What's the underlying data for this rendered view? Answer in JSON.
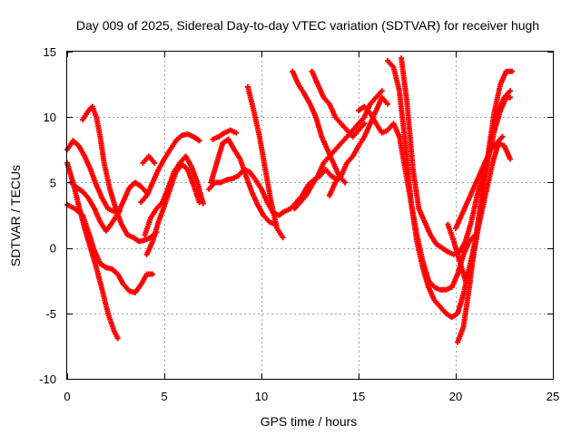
{
  "chart_data": {
    "type": "scatter",
    "title": "Day 009 of 2025, Sidereal Day-to-day VTEC variation (SDTVAR) for receiver hugh",
    "xlabel": "GPS time / hours",
    "ylabel": "SDTVAR / TECUs",
    "xlim": [
      0,
      25
    ],
    "ylim": [
      -10,
      15
    ],
    "x_ticks": [
      0,
      5,
      10,
      15,
      20,
      25
    ],
    "y_ticks": [
      -10,
      -5,
      0,
      5,
      10,
      15
    ],
    "grid": true,
    "marker": "+",
    "color": "#ff0000",
    "series": [
      {
        "x": [
          0.0,
          0.3,
          0.6,
          0.9,
          1.2,
          1.5,
          1.8,
          2.1,
          2.4,
          2.6
        ],
        "y": [
          6.5,
          5.0,
          3.2,
          1.5,
          0.0,
          -1.5,
          -3.2,
          -5.0,
          -6.3,
          -6.9
        ]
      },
      {
        "x": [
          0.0,
          0.4,
          0.8,
          1.1,
          1.4,
          1.7,
          2.0,
          2.3,
          2.6,
          2.9,
          3.2,
          3.5,
          3.8,
          4.1,
          4.4
        ],
        "y": [
          3.3,
          3.0,
          2.5,
          1.2,
          -0.2,
          -1.2,
          -1.5,
          -1.6,
          -2.0,
          -2.8,
          -3.3,
          -3.4,
          -2.8,
          -2.0,
          -2.0
        ]
      },
      {
        "x": [
          0.0,
          0.3,
          0.6,
          0.9,
          1.2,
          1.5,
          1.8,
          2.1,
          2.4,
          2.7
        ],
        "y": [
          7.5,
          8.2,
          7.8,
          7.0,
          6.0,
          4.8,
          3.8,
          3.0,
          2.8,
          2.8
        ]
      },
      {
        "x": [
          0.8,
          1.1,
          1.3,
          1.5,
          1.7,
          1.9,
          2.2,
          2.5,
          2.8,
          3.1,
          3.4,
          3.7,
          4.0,
          4.3,
          4.6
        ],
        "y": [
          9.8,
          10.5,
          10.8,
          10.0,
          8.5,
          6.5,
          4.5,
          3.0,
          1.8,
          1.0,
          0.8,
          0.5,
          0.6,
          0.8,
          1.2
        ]
      },
      {
        "x": [
          0.2,
          0.5,
          0.8,
          1.1,
          1.4,
          1.7,
          2.0,
          2.3,
          2.6,
          2.9,
          3.2,
          3.5,
          3.8,
          4.1
        ],
        "y": [
          5.0,
          4.6,
          4.3,
          3.8,
          3.0,
          2.0,
          1.3,
          1.9,
          2.6,
          3.6,
          4.6,
          5.0,
          4.7,
          4.2
        ]
      },
      {
        "x": [
          4.0,
          4.3,
          4.6,
          4.9,
          5.2,
          5.5,
          5.8,
          6.1,
          6.4,
          6.7,
          7.0
        ],
        "y": [
          1.0,
          2.3,
          3.0,
          3.5,
          4.6,
          5.8,
          6.5,
          7.0,
          6.2,
          5.0,
          3.4
        ]
      },
      {
        "x": [
          3.8,
          4.1,
          4.4,
          4.7,
          5.0,
          5.3,
          5.6,
          5.9,
          6.2,
          6.5,
          6.8
        ],
        "y": [
          3.5,
          4.0,
          5.0,
          6.0,
          6.8,
          7.5,
          8.2,
          8.6,
          8.7,
          8.5,
          8.2
        ]
      },
      {
        "x": [
          4.1,
          4.4,
          4.7,
          5.0,
          5.3,
          5.6,
          5.9,
          6.2,
          6.5,
          6.8
        ],
        "y": [
          -0.5,
          0.5,
          2.0,
          3.2,
          4.5,
          5.8,
          6.4,
          6.0,
          4.8,
          3.5
        ]
      },
      {
        "x": [
          3.9,
          4.2,
          4.5
        ],
        "y": [
          6.5,
          7.0,
          6.5
        ]
      },
      {
        "x": [
          7.3,
          7.6,
          7.9,
          8.2,
          8.5,
          8.8,
          9.1,
          9.4,
          9.7,
          10.0,
          10.3,
          10.6,
          10.9,
          11.2,
          11.5,
          11.8,
          12.1,
          12.4,
          12.7,
          13.0,
          13.3,
          13.6,
          13.9
        ],
        "y": [
          4.5,
          5.0,
          5.0,
          5.2,
          5.3,
          5.5,
          6.0,
          5.8,
          5.2,
          4.5,
          3.5,
          2.7,
          2.5,
          2.8,
          3.0,
          3.5,
          4.0,
          4.8,
          5.2,
          5.5,
          6.0,
          5.5,
          5.2
        ]
      },
      {
        "x": [
          7.5,
          7.8,
          8.1,
          8.4,
          8.7
        ],
        "y": [
          8.3,
          8.5,
          8.8,
          9.0,
          8.8
        ]
      },
      {
        "x": [
          7.4,
          7.7,
          8.0,
          8.3,
          8.6,
          8.9,
          9.2,
          9.5,
          9.8,
          10.1,
          10.4,
          10.7
        ],
        "y": [
          5.0,
          6.5,
          8.0,
          8.3,
          7.5,
          6.8,
          5.5,
          4.3,
          3.3,
          2.5,
          2.0,
          1.8
        ]
      },
      {
        "x": [
          9.3,
          9.6,
          9.9,
          10.2,
          10.5,
          10.8,
          11.1
        ],
        "y": [
          12.3,
          10.5,
          8.5,
          6.0,
          3.5,
          1.5,
          0.8
        ]
      },
      {
        "x": [
          11.6,
          11.9,
          12.2,
          12.5,
          12.8,
          13.1,
          13.4,
          13.7,
          14.0,
          14.3
        ],
        "y": [
          13.5,
          12.5,
          11.8,
          11.0,
          10.0,
          8.5,
          7.5,
          6.5,
          5.5,
          5.0
        ]
      },
      {
        "x": [
          12.6,
          12.9,
          13.2,
          13.5,
          13.8,
          14.1,
          14.4,
          14.7,
          15.0,
          15.3
        ],
        "y": [
          13.5,
          12.5,
          11.5,
          11.0,
          10.0,
          9.5,
          9.0,
          8.5,
          9.0,
          9.5
        ]
      },
      {
        "x": [
          11.7,
          12.0,
          12.3,
          12.6,
          12.9,
          13.2,
          13.5,
          13.8,
          14.1,
          14.4,
          14.7,
          15.0,
          15.3,
          15.6,
          15.9,
          16.2
        ],
        "y": [
          3.0,
          3.5,
          4.0,
          4.8,
          5.5,
          6.5,
          7.0,
          7.5,
          8.0,
          8.5,
          9.0,
          9.5,
          10.0,
          11.0,
          11.5,
          12.0
        ]
      },
      {
        "x": [
          13.5,
          13.8,
          14.1,
          14.4,
          14.7,
          15.0,
          15.3,
          15.6,
          15.9,
          16.2,
          16.5
        ],
        "y": [
          4.0,
          5.0,
          5.5,
          6.5,
          7.0,
          7.8,
          8.5,
          9.5,
          10.5,
          11.5,
          11.0
        ]
      },
      {
        "x": [
          15.0,
          15.3,
          15.6,
          15.9,
          16.2,
          16.5,
          16.8,
          17.1,
          17.4,
          17.7,
          18.0,
          18.3,
          18.6,
          18.9,
          19.2,
          19.5,
          19.8,
          20.1,
          20.4,
          20.7,
          21.0
        ],
        "y": [
          10.5,
          10.8,
          10.3,
          9.5,
          8.8,
          9.0,
          9.5,
          8.5,
          6.0,
          3.5,
          1.0,
          -1.0,
          -2.5,
          -3.0,
          -3.2,
          -3.2,
          -3.0,
          -2.0,
          -0.5,
          0.5,
          1.0
        ]
      },
      {
        "x": [
          16.5,
          16.8,
          17.1,
          17.4,
          17.7,
          18.0,
          18.3,
          18.6,
          18.9,
          19.2,
          19.5,
          19.8,
          20.1,
          20.4,
          20.7,
          21.0,
          21.3,
          21.6,
          21.9,
          22.2,
          22.5,
          22.8
        ],
        "y": [
          14.3,
          13.8,
          12.0,
          8.0,
          3.5,
          0.5,
          -1.5,
          -3.0,
          -4.0,
          -4.5,
          -5.0,
          -5.3,
          -5.0,
          -3.5,
          -1.5,
          0.5,
          2.5,
          4.5,
          6.5,
          8.0,
          7.8,
          6.8
        ]
      },
      {
        "x": [
          17.2,
          17.5,
          17.8,
          18.1,
          18.4,
          18.7,
          19.0,
          19.3,
          19.6,
          19.9,
          20.2,
          20.5,
          20.8,
          21.1,
          21.4,
          21.7,
          22.0,
          22.3,
          22.6,
          22.8
        ],
        "y": [
          14.5,
          11.0,
          6.0,
          3.0,
          2.0,
          1.0,
          0.3,
          0.0,
          -0.3,
          -0.5,
          -0.3,
          0.5,
          2.0,
          4.0,
          5.5,
          7.0,
          9.0,
          10.5,
          11.5,
          11.5
        ]
      },
      {
        "x": [
          19.6,
          19.9,
          20.2,
          20.5,
          20.8,
          21.1,
          21.4,
          21.7,
          22.0,
          22.3,
          22.6,
          22.9
        ],
        "y": [
          1.8,
          0.5,
          -1.0,
          -2.5,
          -1.5,
          1.0,
          4.0,
          7.5,
          10.5,
          12.5,
          13.5,
          13.5
        ]
      },
      {
        "x": [
          20.1,
          20.4,
          20.7,
          21.0,
          21.3,
          21.6,
          21.9,
          22.2,
          22.5,
          22.8
        ],
        "y": [
          -7.2,
          -6.0,
          -3.0,
          0.5,
          3.5,
          6.5,
          9.0,
          10.5,
          11.5,
          12.0
        ]
      },
      {
        "x": [
          20.0,
          20.3,
          20.6,
          20.9,
          21.2,
          21.5,
          21.8,
          22.1,
          22.4
        ],
        "y": [
          1.5,
          2.5,
          3.5,
          4.5,
          5.5,
          6.5,
          7.5,
          8.0,
          8.5
        ]
      }
    ]
  }
}
